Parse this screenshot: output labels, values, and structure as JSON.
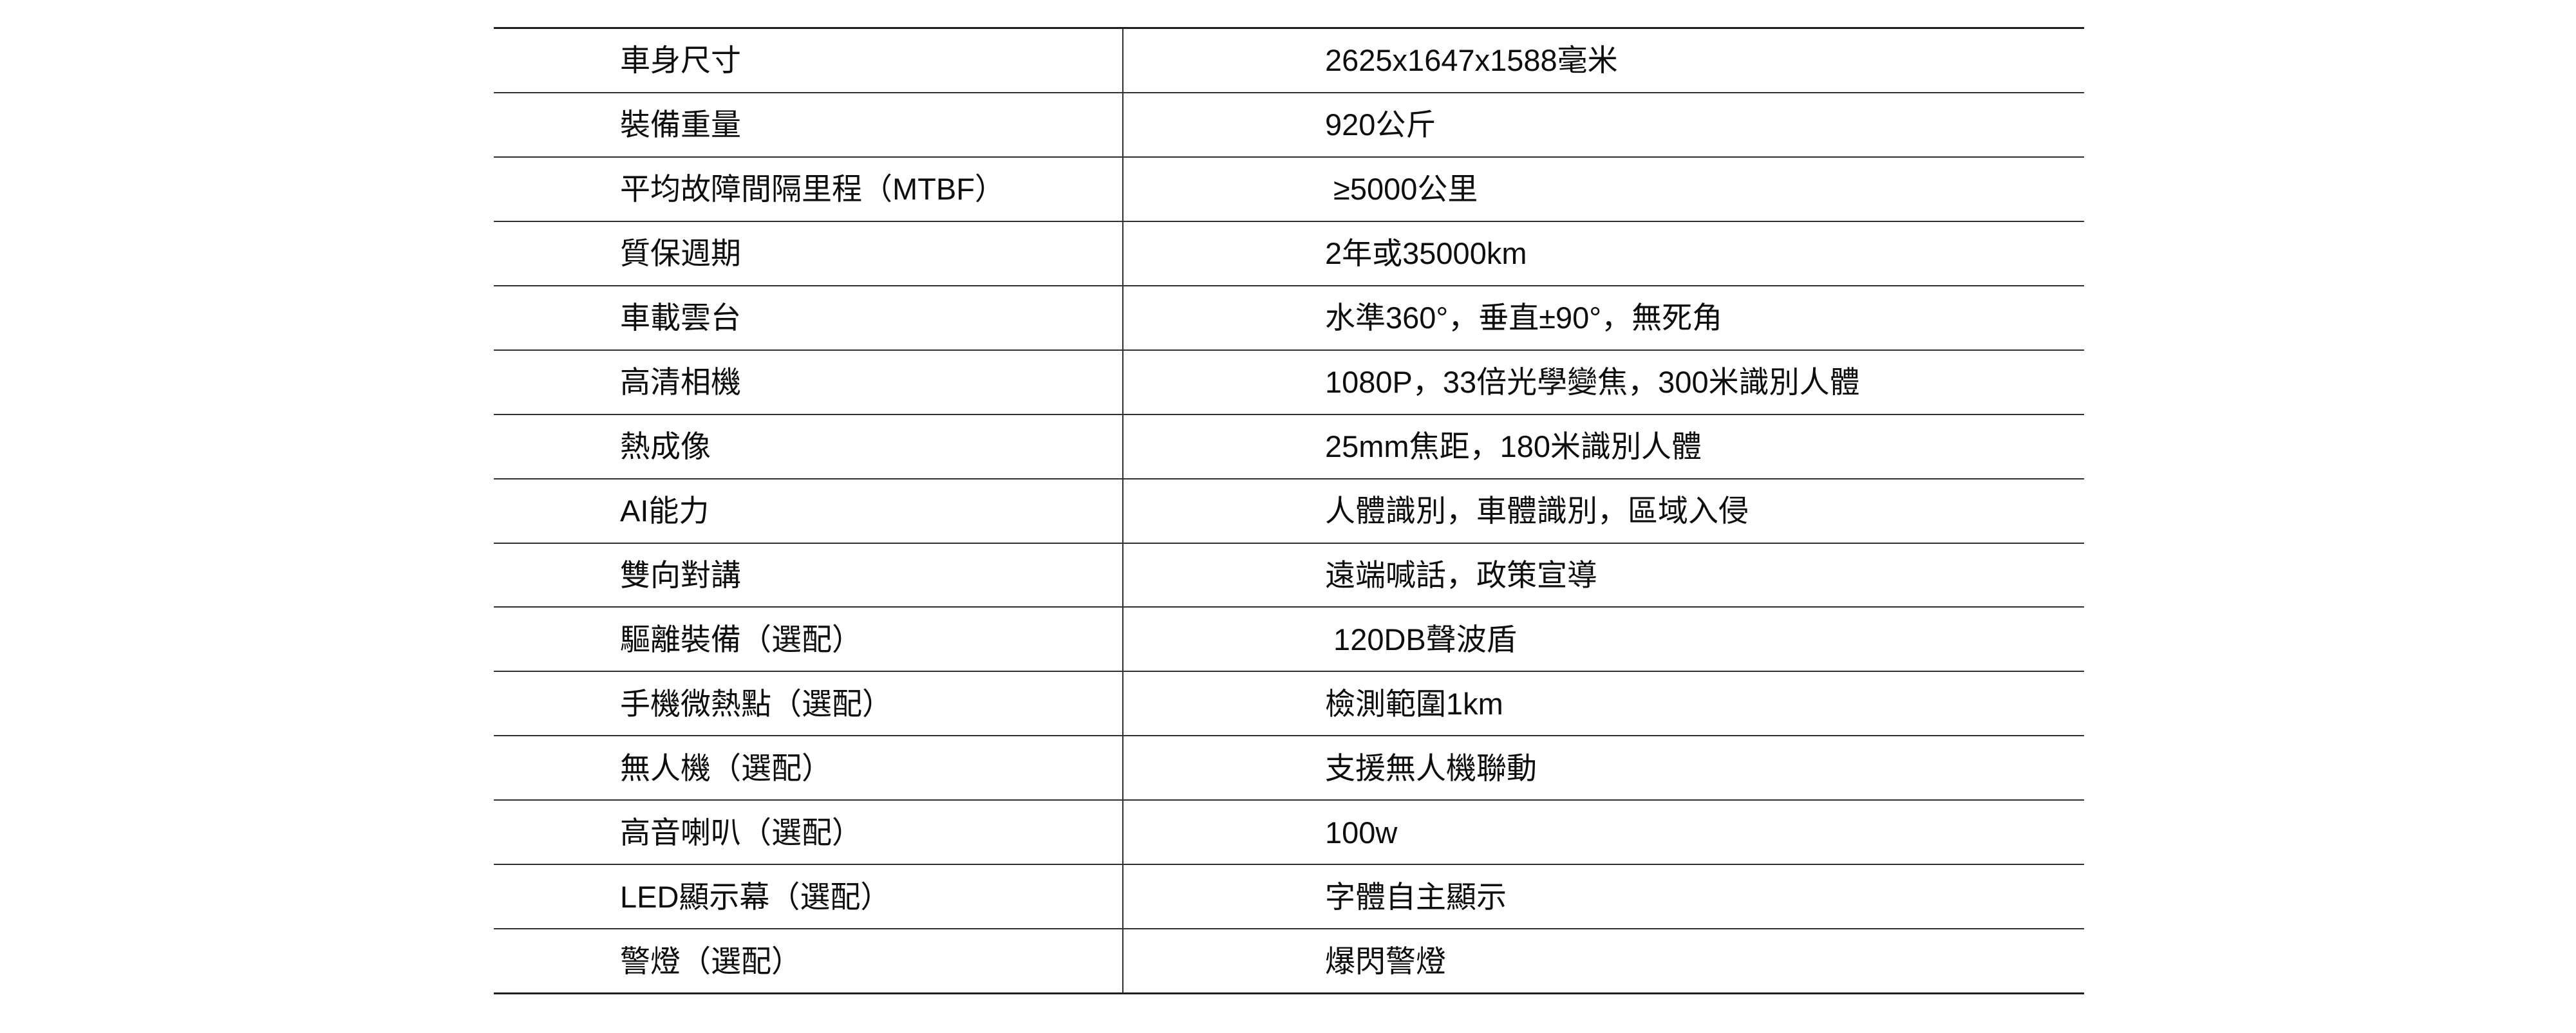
{
  "table": {
    "rows": [
      {
        "label": "車身尺寸",
        "value": "2625x1647x1588毫米"
      },
      {
        "label": "裝備重量",
        "value": "920公斤"
      },
      {
        "label": "平均故障間隔里程（MTBF）",
        "value": " ≥5000公里"
      },
      {
        "label": "質保週期",
        "value": "2年或35000km"
      },
      {
        "label": "車載雲台",
        "value": "水準360°，垂直±90°，無死角"
      },
      {
        "label": "高清相機",
        "value": "1080P，33倍光學變焦，300米識別人體"
      },
      {
        "label": "熱成像",
        "value": "25mm焦距，180米識別人體"
      },
      {
        "label": "AI能力",
        "value": "人體識別，車體識別，區域入侵"
      },
      {
        "label": "雙向對講",
        "value": "遠端喊話，政策宣導"
      },
      {
        "label": "驅離裝備（選配）",
        "value": " 120DB聲波盾"
      },
      {
        "label": "手機微熱點（選配）",
        "value": "檢測範圍1km"
      },
      {
        "label": "無人機（選配）",
        "value": "支援無人機聯動"
      },
      {
        "label": "高音喇叭（選配）",
        "value": "100w"
      },
      {
        "label": "LED顯示幕（選配）",
        "value": "字體自主顯示"
      },
      {
        "label": "警燈（選配）",
        "value": "爆閃警燈"
      }
    ]
  },
  "colors": {
    "background": "#ffffff",
    "text": "#0e0e0e",
    "rule": "#303030",
    "outer_rule": "#1d1d1d"
  }
}
